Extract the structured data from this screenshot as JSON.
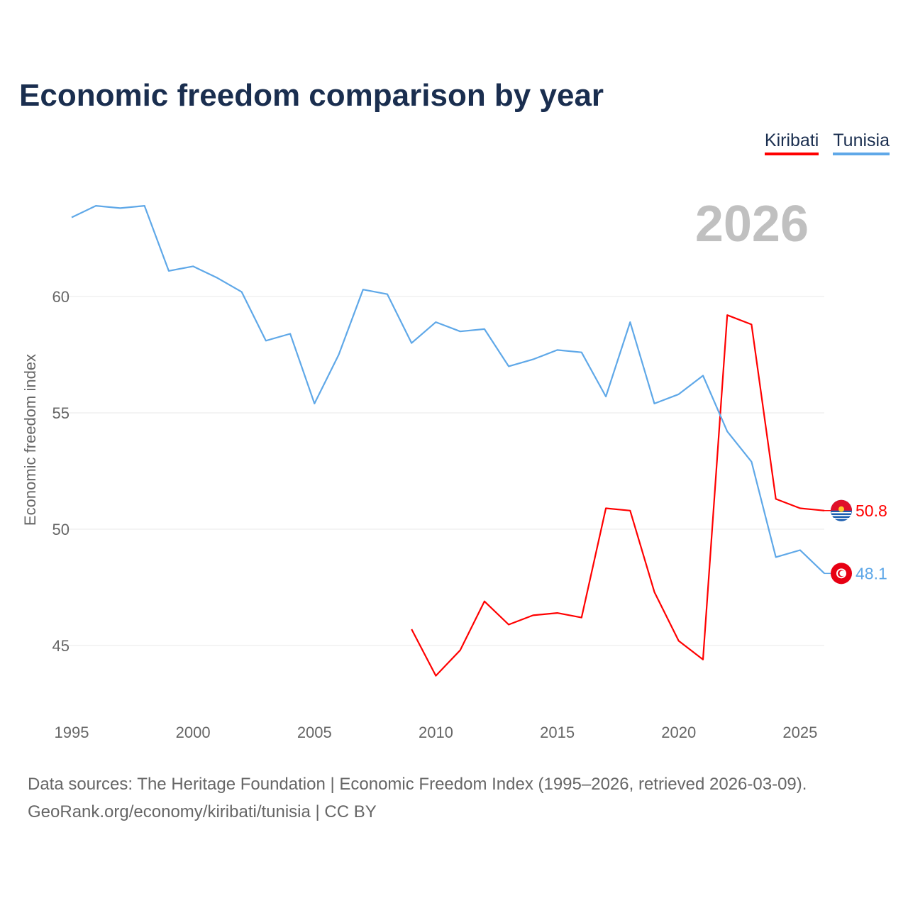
{
  "title": "Economic freedom comparison by year",
  "footer": {
    "line1": "Data sources: The Heritage Foundation | Economic Freedom Index (1995–2026, retrieved 2026-03-09).",
    "line2": "GeoRank.org/economy/kiribati/tunisia | CC BY"
  },
  "chart_data": {
    "type": "line",
    "title": "Economic freedom comparison by year",
    "xlabel": "",
    "ylabel": "Economic freedom index",
    "year_label": "2026",
    "xlim": [
      1995,
      2026
    ],
    "ylim": [
      42,
      65
    ],
    "xticks": [
      1995,
      2000,
      2005,
      2010,
      2015,
      2020,
      2025
    ],
    "yticks": [
      45,
      50,
      55,
      60
    ],
    "grid": true,
    "legend_position": "top-right",
    "series": [
      {
        "name": "Kiribati",
        "color": "#ff0000",
        "end_label": "50.8",
        "flag_icon": "kiribati-flag-icon",
        "x": [
          2009,
          2010,
          2011,
          2012,
          2013,
          2014,
          2015,
          2016,
          2017,
          2018,
          2019,
          2020,
          2021,
          2022,
          2023,
          2024,
          2025,
          2026
        ],
        "values": [
          45.7,
          43.7,
          44.8,
          46.9,
          45.9,
          46.3,
          46.4,
          46.2,
          50.9,
          50.8,
          47.3,
          45.2,
          44.4,
          59.2,
          58.8,
          51.3,
          50.9,
          50.8
        ]
      },
      {
        "name": "Tunisia",
        "color": "#5fa8e8",
        "end_label": "48.1",
        "flag_icon": "tunisia-flag-icon",
        "x": [
          1995,
          1996,
          1997,
          1998,
          1999,
          2000,
          2001,
          2002,
          2003,
          2004,
          2005,
          2006,
          2007,
          2008,
          2009,
          2010,
          2011,
          2012,
          2013,
          2014,
          2015,
          2016,
          2017,
          2018,
          2019,
          2020,
          2021,
          2022,
          2023,
          2024,
          2025,
          2026
        ],
        "values": [
          63.4,
          63.9,
          63.8,
          63.9,
          61.1,
          61.3,
          60.8,
          60.2,
          58.1,
          58.4,
          55.4,
          57.5,
          60.3,
          60.1,
          58.0,
          58.9,
          58.5,
          58.6,
          57.0,
          57.3,
          57.7,
          57.6,
          55.7,
          58.9,
          55.4,
          55.8,
          56.6,
          54.2,
          52.9,
          48.8,
          49.1,
          48.1
        ]
      }
    ]
  }
}
